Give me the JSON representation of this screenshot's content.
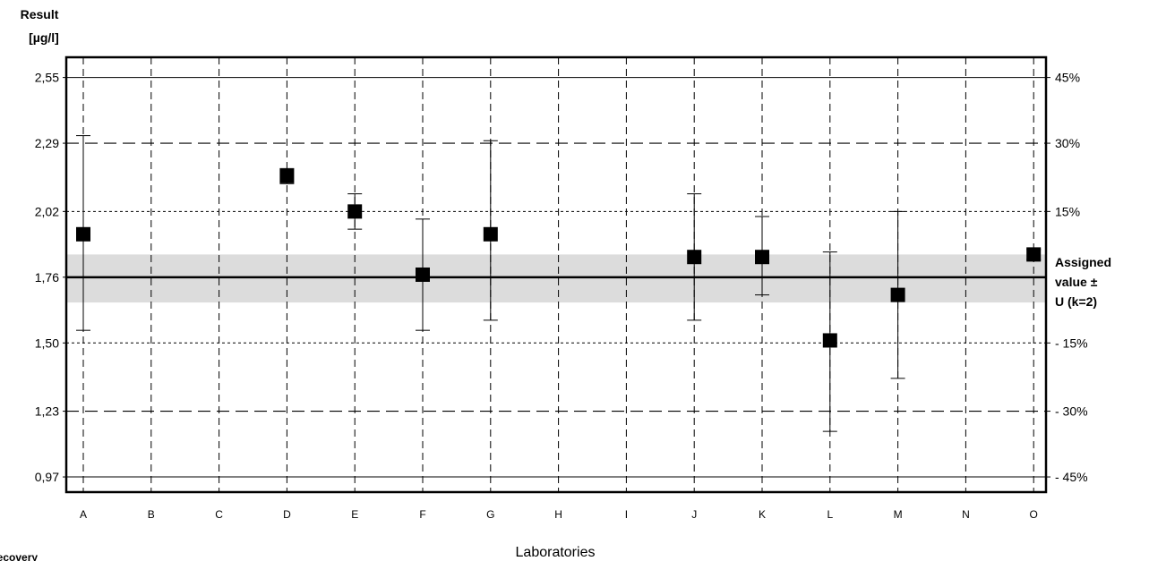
{
  "chart_data": {
    "type": "scatter",
    "ylabel_line1": "Result",
    "ylabel_line2": "[µg/l]",
    "xlabel": "Laboratories",
    "bottom_left_label": "Recovery",
    "ylim": [
      0.91,
      2.63
    ],
    "yticks": [
      "2,55",
      "2,29",
      "2,02",
      "1,76",
      "1,50",
      "1,23",
      "0,97"
    ],
    "ytick_values": [
      2.55,
      2.29,
      2.02,
      1.76,
      1.5,
      1.23,
      0.97
    ],
    "assigned_value": 1.76,
    "assigned_uncertainty_band": [
      1.66,
      1.85
    ],
    "right_labels": [
      "45%",
      "30%",
      "15%",
      "- 15%",
      "- 30%",
      "- 45%"
    ],
    "right_label_values": [
      2.55,
      2.29,
      2.02,
      1.5,
      1.23,
      0.97
    ],
    "assigned_label": [
      "Assigned",
      "value ±",
      "U (k=2)"
    ],
    "categories": [
      "A",
      "B",
      "C",
      "D",
      "E",
      "F",
      "G",
      "H",
      "I",
      "J",
      "K",
      "L",
      "M",
      "N",
      "O"
    ],
    "points": [
      {
        "lab": "A",
        "value": 1.93,
        "low": 1.55,
        "high": 2.32
      },
      {
        "lab": "B",
        "value": null,
        "low": null,
        "high": null
      },
      {
        "lab": "C",
        "value": null,
        "low": null,
        "high": null
      },
      {
        "lab": "D",
        "value": 2.16,
        "low": 2.13,
        "high": 2.19
      },
      {
        "lab": "E",
        "value": 2.02,
        "low": 1.95,
        "high": 2.09
      },
      {
        "lab": "F",
        "value": 1.77,
        "low": 1.55,
        "high": 1.99
      },
      {
        "lab": "G",
        "value": 1.93,
        "low": 1.59,
        "high": 2.3
      },
      {
        "lab": "H",
        "value": null,
        "low": null,
        "high": null
      },
      {
        "lab": "I",
        "value": null,
        "low": null,
        "high": null
      },
      {
        "lab": "J",
        "value": 1.84,
        "low": 1.59,
        "high": 2.09
      },
      {
        "lab": "K",
        "value": 1.84,
        "low": 1.69,
        "high": 2.0
      },
      {
        "lab": "L",
        "value": 1.51,
        "low": 1.15,
        "high": 1.86
      },
      {
        "lab": "M",
        "value": 1.69,
        "low": 1.36,
        "high": 2.02
      },
      {
        "lab": "N",
        "value": null,
        "low": null,
        "high": null
      },
      {
        "lab": "O",
        "value": 1.85,
        "low": 1.83,
        "high": 1.87
      }
    ],
    "grid": true,
    "legend": "none"
  }
}
